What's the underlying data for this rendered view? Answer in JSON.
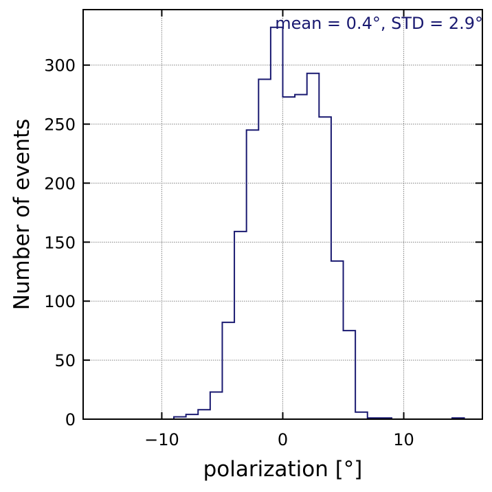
{
  "chart_data": {
    "type": "histogram",
    "xlabel": "polarization [°]",
    "ylabel": "Number of events",
    "annotation": "mean = 0.4°, STD = 2.9°",
    "xlim": [
      -16.5,
      16.5
    ],
    "ylim": [
      0,
      347
    ],
    "x_ticks": [
      -10,
      0,
      10
    ],
    "x_tick_labels": [
      "−10",
      "0",
      "10"
    ],
    "y_ticks": [
      0,
      50,
      100,
      150,
      200,
      250,
      300
    ],
    "y_tick_labels": [
      "0",
      "50",
      "100",
      "150",
      "200",
      "250",
      "300"
    ],
    "grid": true,
    "bin_edges": [
      -9,
      -8,
      -7,
      -6,
      -5,
      -4,
      -3,
      -2,
      -1,
      0,
      1,
      2,
      3,
      4,
      5,
      6,
      7,
      8,
      9,
      10,
      11,
      12,
      13,
      14,
      15
    ],
    "counts": [
      2,
      4,
      8,
      23,
      82,
      159,
      245,
      288,
      332,
      273,
      275,
      293,
      256,
      134,
      75,
      6,
      1,
      1,
      0,
      0,
      0,
      0,
      0,
      1
    ],
    "colors": {
      "line": "#191970",
      "annotation": "#191970",
      "grid": "#808080",
      "axes": "#000000"
    }
  }
}
